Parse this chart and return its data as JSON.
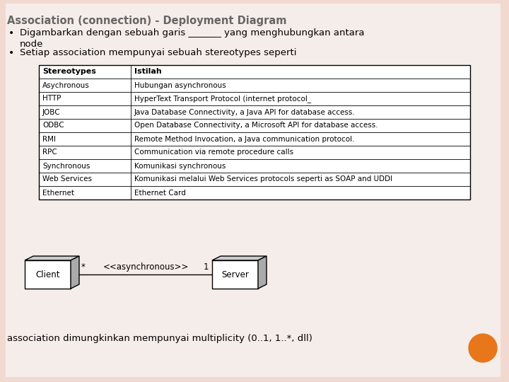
{
  "title": "Association (connection) - Deployment Diagram",
  "bullet1_part1": "Digambarkan dengan sebuah garis ",
  "bullet1_underline": "_______",
  "bullet1_part2": " yang menghubungkan antara",
  "bullet1_line2": "node",
  "bullet2": "Setiap association mempunyai sebuah stereotypes seperti",
  "table_headers": [
    "Stereotypes",
    "Istilah"
  ],
  "table_rows": [
    [
      "Asychronous",
      "Hubungan asynchronous"
    ],
    [
      "HTTP",
      "HyperText Transport Protocol (internet protocol_"
    ],
    [
      "JOBC",
      "Java Database Connectivity, a Java API for database access."
    ],
    [
      "ODBC",
      "Open Database Connectivity, a Microsoft API for database access."
    ],
    [
      "RMI",
      "Remote Method Invocation, a Java communication protocol."
    ],
    [
      "RPC",
      "Communication via remote procedure calls"
    ],
    [
      "Synchronous",
      "Komunikasi synchronous"
    ],
    [
      "Web Services",
      "Komunikasi melalui Web Services protocols seperti as SOAP and UDDI"
    ],
    [
      "Ethernet",
      "Ethernet Card"
    ]
  ],
  "bottom_text": "association dimungkinkan mempunyai multiplicity (0..1, 1..*, dll)",
  "client_label": "Client",
  "server_label": "Server",
  "assoc_label": "<<asynchronous>>",
  "mult_left": "*",
  "mult_right": "1",
  "bg_color": "#f2d9d0",
  "inner_bg": "#f5ede9",
  "table_bg": "#ffffff",
  "orange_dot_color": "#e8761a",
  "title_color": "#666666",
  "text_color": "#000000"
}
